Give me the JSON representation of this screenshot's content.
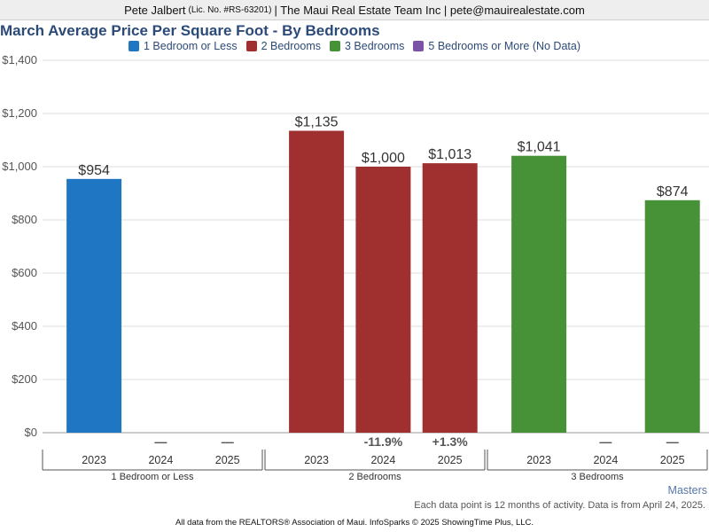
{
  "header": {
    "agent": "Pete Jalbert",
    "license": "(Lic. No. #RS-63201)",
    "rest": "| The Maui Real Estate Team Inc | pete@mauirealestate.com"
  },
  "chart_data": {
    "type": "bar",
    "title": "March Average Price Per Square Foot - By Bedrooms",
    "ylim": [
      0,
      1400
    ],
    "yticks": [
      "$0",
      "$200",
      "$400",
      "$600",
      "$800",
      "$1,000",
      "$1,200",
      "$1,400"
    ],
    "ytick_values": [
      0,
      200,
      400,
      600,
      800,
      1000,
      1200,
      1400
    ],
    "grid": true,
    "legend_position": "top-center",
    "years": [
      "2023",
      "2024",
      "2025"
    ],
    "groups": [
      {
        "name": "1 Bedroom or Less",
        "color": "#1f77c4",
        "values": [
          954,
          null,
          null
        ],
        "value_labels": [
          "$954",
          "",
          ""
        ],
        "change_labels": [
          "",
          "—",
          "—"
        ]
      },
      {
        "name": "2 Bedrooms",
        "color": "#a03030",
        "values": [
          1135,
          1000,
          1013
        ],
        "value_labels": [
          "$1,135",
          "$1,000",
          "$1,013"
        ],
        "change_labels": [
          "",
          "-11.9%",
          "+1.3%"
        ]
      },
      {
        "name": "3 Bedrooms",
        "color": "#479137",
        "values": [
          1041,
          null,
          874
        ],
        "value_labels": [
          "$1,041",
          "",
          "$874"
        ],
        "change_labels": [
          "",
          "—",
          "—"
        ]
      }
    ],
    "legend": [
      {
        "label": "1 Bedroom or Less",
        "color": "#1f77c4"
      },
      {
        "label": "2 Bedrooms",
        "color": "#a03030"
      },
      {
        "label": "3 Bedrooms",
        "color": "#479137"
      },
      {
        "label": "5 Bedrooms or More (No Data)",
        "color": "#7b52a6"
      }
    ]
  },
  "footer": {
    "masters": "Masters",
    "note": "Each data point is 12 months of activity. Data is from April 24, 2025.",
    "credit": "All data from the REALTORS® Association of Maui. InfoSparks © 2025 ShowingTime Plus, LLC."
  }
}
